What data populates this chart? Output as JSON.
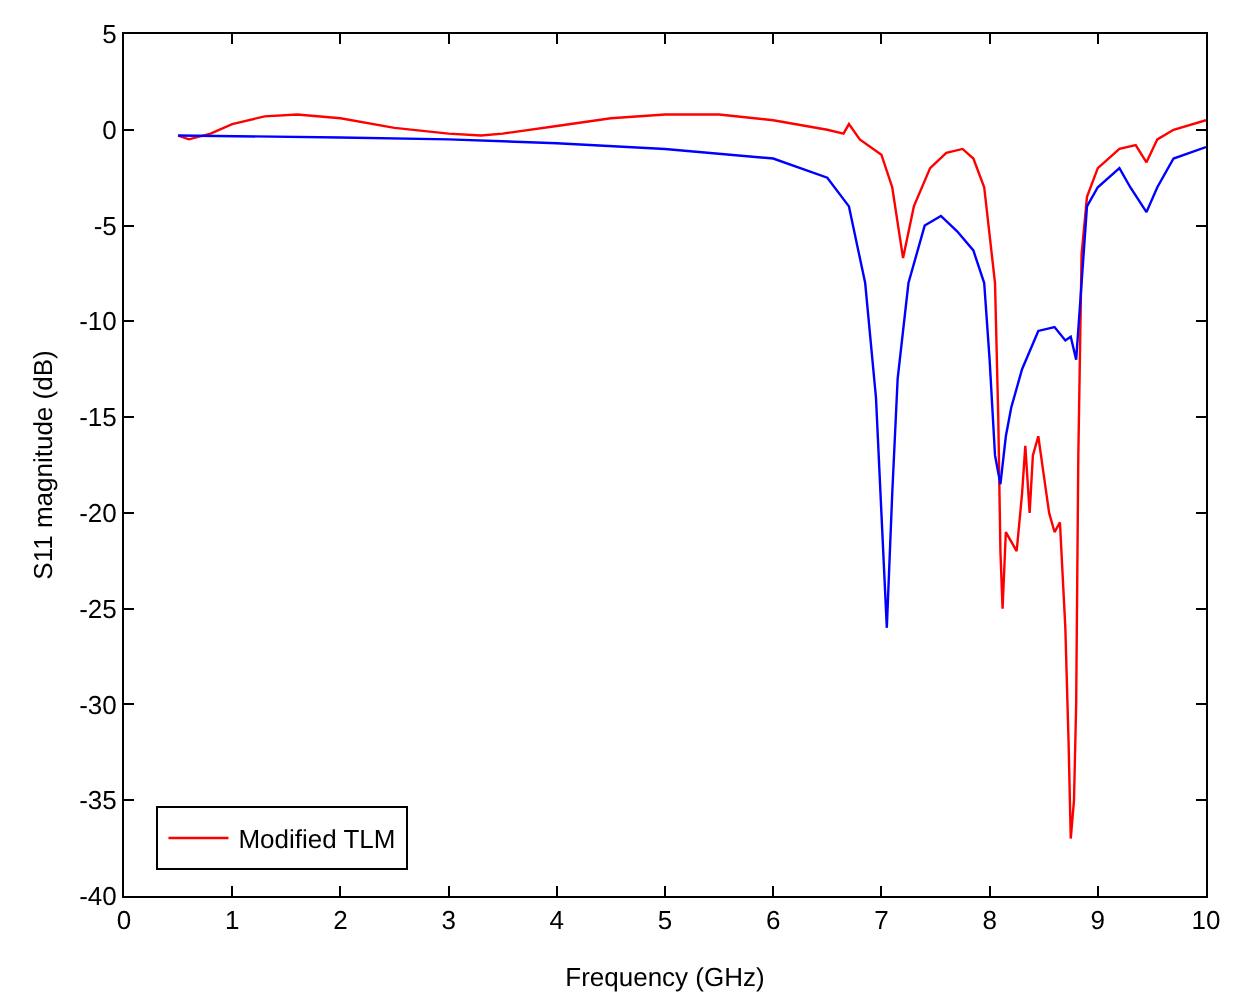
{
  "chart_data": {
    "type": "line",
    "xlabel": "Frequency (GHz)",
    "ylabel": "S11 magnitude (dB)",
    "xlim": [
      0,
      10
    ],
    "xticks": [
      0,
      1,
      2,
      3,
      4,
      5,
      6,
      7,
      8,
      9,
      10
    ],
    "ylim": [
      -40,
      5
    ],
    "yticks": [
      -40,
      -35,
      -30,
      -25,
      -20,
      -15,
      -10,
      -5,
      0,
      5
    ],
    "grid": false,
    "legend": "bottom left",
    "line_style": "solid",
    "marker": "none",
    "series": [
      {
        "name": "Modified TLM",
        "color": "#ff0000",
        "x": [
          0.5,
          0.6,
          0.8,
          1.0,
          1.3,
          1.6,
          2.0,
          2.5,
          3.0,
          3.3,
          3.5,
          4.0,
          4.5,
          5.0,
          5.5,
          6.0,
          6.5,
          6.65,
          6.7,
          6.8,
          7.0,
          7.1,
          7.2,
          7.3,
          7.45,
          7.6,
          7.75,
          7.85,
          7.95,
          8.05,
          8.08,
          8.1,
          8.12,
          8.15,
          8.2,
          8.25,
          8.3,
          8.33,
          8.37,
          8.4,
          8.45,
          8.5,
          8.55,
          8.6,
          8.65,
          8.7,
          8.73,
          8.75,
          8.78,
          8.8,
          8.82,
          8.85,
          8.9,
          9.0,
          9.2,
          9.35,
          9.45,
          9.55,
          9.7,
          10
        ],
        "values": [
          -0.3,
          -0.5,
          -0.2,
          0.3,
          0.7,
          0.8,
          0.6,
          0.1,
          -0.2,
          -0.3,
          -0.2,
          0.2,
          0.6,
          0.8,
          0.8,
          0.5,
          0.0,
          -0.2,
          0.3,
          -0.5,
          -1.3,
          -3,
          -6.7,
          -4,
          -2,
          -1.2,
          -1.0,
          -1.5,
          -3,
          -8,
          -15,
          -22,
          -25,
          -21,
          -21.5,
          -22,
          -19,
          -16.5,
          -20,
          -17,
          -16,
          -18,
          -20,
          -21,
          -20.5,
          -26,
          -32,
          -37,
          -35,
          -30,
          -17,
          -6.5,
          -3.5,
          -2,
          -1,
          -0.8,
          -1.7,
          -0.5,
          0.0,
          0.5
        ]
      },
      {
        "color": "#0000ff",
        "x": [
          0.5,
          2.0,
          3.0,
          4.0,
          5.0,
          6.0,
          6.5,
          6.7,
          6.85,
          6.95,
          7.0,
          7.05,
          7.1,
          7.15,
          7.25,
          7.4,
          7.55,
          7.7,
          7.85,
          7.95,
          8.0,
          8.05,
          8.1,
          8.15,
          8.2,
          8.3,
          8.45,
          8.6,
          8.7,
          8.75,
          8.8,
          8.85,
          8.9,
          9.0,
          9.2,
          9.3,
          9.45,
          9.55,
          9.7,
          10
        ],
        "values": [
          -0.3,
          -0.4,
          -0.5,
          -0.7,
          -1.0,
          -1.5,
          -2.5,
          -4,
          -8,
          -14,
          -20,
          -26,
          -19,
          -13,
          -8,
          -5,
          -4.5,
          -5.3,
          -6.3,
          -8,
          -12,
          -17,
          -18.5,
          -16,
          -14.5,
          -12.5,
          -10.5,
          -10.3,
          -11,
          -10.8,
          -12,
          -8,
          -4,
          -3,
          -2,
          -3,
          -4.3,
          -3,
          -1.5,
          -0.9
        ]
      }
    ]
  }
}
